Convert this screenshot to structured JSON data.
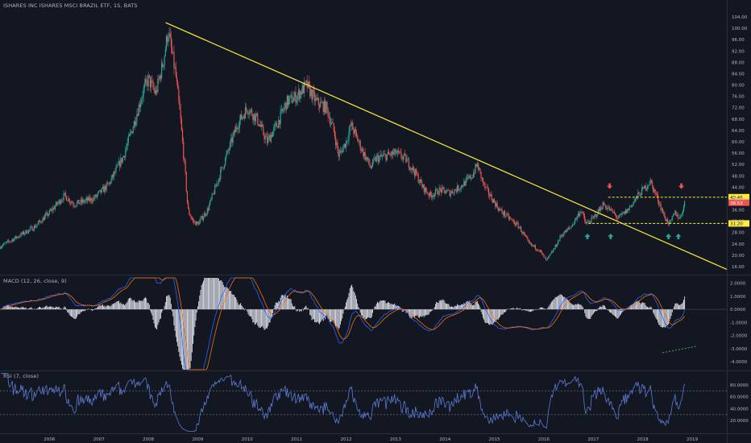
{
  "header": {
    "symbol_line": "ISHARES INC ISHARES MSCI BRAZIL ETF, 1S, BATS"
  },
  "macd_label": "MACD (12, 26, close, 9)",
  "rsi_label": "RSI (7, close)",
  "colors": {
    "background": "#131722",
    "up": "#26a69a",
    "down": "#ef5350",
    "trendline": "#ffeb3b",
    "level": "#ffeb3b",
    "macd": "#2962ff",
    "signal": "#ff6d00",
    "rsi": "#5b7bd5",
    "arrow_up": "#26a69a",
    "arrow_down": "#ef5350",
    "current_price": "#ef5350"
  },
  "chart_data": [
    {
      "type": "candlestick",
      "title": "ISHARES INC ISHARES MSCI BRAZIL ETF, 1S, BATS",
      "ylim": [
        14,
        106
      ],
      "y_ticks": [
        "104.00",
        "100.00",
        "96.00",
        "92.00",
        "88.00",
        "84.00",
        "80.00",
        "76.00",
        "72.00",
        "68.00",
        "64.00",
        "60.00",
        "56.00",
        "52.00",
        "48.00",
        "44.00",
        "40.00",
        "36.00",
        "32.00",
        "28.00",
        "24.00",
        "20.00",
        "16.00"
      ],
      "x_ticks": [
        "2006",
        "2007",
        "2008",
        "2009",
        "2010",
        "2011",
        "2012",
        "2013",
        "2014",
        "2015",
        "2016",
        "2017",
        "2018",
        "2019"
      ],
      "price_path": [
        [
          2005.0,
          23
        ],
        [
          2005.3,
          26
        ],
        [
          2005.7,
          30
        ],
        [
          2006.0,
          35
        ],
        [
          2006.3,
          41
        ],
        [
          2006.5,
          38
        ],
        [
          2006.9,
          40
        ],
        [
          2007.2,
          45
        ],
        [
          2007.5,
          55
        ],
        [
          2007.7,
          66
        ],
        [
          2007.9,
          78
        ],
        [
          2008.0,
          82
        ],
        [
          2008.15,
          77
        ],
        [
          2008.3,
          88
        ],
        [
          2008.4,
          99
        ],
        [
          2008.55,
          84
        ],
        [
          2008.65,
          68
        ],
        [
          2008.75,
          48
        ],
        [
          2008.8,
          36
        ],
        [
          2008.9,
          32
        ],
        [
          2009.0,
          31
        ],
        [
          2009.2,
          36
        ],
        [
          2009.4,
          46
        ],
        [
          2009.6,
          56
        ],
        [
          2009.8,
          66
        ],
        [
          2010.0,
          72
        ],
        [
          2010.2,
          68
        ],
        [
          2010.4,
          60
        ],
        [
          2010.6,
          66
        ],
        [
          2010.8,
          74
        ],
        [
          2011.0,
          76
        ],
        [
          2011.2,
          80
        ],
        [
          2011.4,
          74
        ],
        [
          2011.6,
          72
        ],
        [
          2011.75,
          64
        ],
        [
          2011.85,
          55
        ],
        [
          2012.0,
          60
        ],
        [
          2012.1,
          66
        ],
        [
          2012.2,
          62
        ],
        [
          2012.35,
          56
        ],
        [
          2012.5,
          51
        ],
        [
          2012.6,
          54
        ],
        [
          2012.8,
          55
        ],
        [
          2013.0,
          56
        ],
        [
          2013.2,
          54
        ],
        [
          2013.4,
          49
        ],
        [
          2013.55,
          44
        ],
        [
          2013.7,
          41
        ],
        [
          2013.9,
          43
        ],
        [
          2014.1,
          42
        ],
        [
          2014.3,
          44
        ],
        [
          2014.55,
          48
        ],
        [
          2014.65,
          52
        ],
        [
          2014.8,
          44
        ],
        [
          2014.95,
          40
        ],
        [
          2015.1,
          36
        ],
        [
          2015.3,
          33
        ],
        [
          2015.5,
          30
        ],
        [
          2015.7,
          24
        ],
        [
          2015.9,
          22
        ],
        [
          2016.05,
          18
        ],
        [
          2016.2,
          22
        ],
        [
          2016.35,
          27
        ],
        [
          2016.55,
          30
        ],
        [
          2016.75,
          36
        ],
        [
          2016.85,
          31
        ],
        [
          2017.0,
          33
        ],
        [
          2017.2,
          38
        ],
        [
          2017.4,
          35
        ],
        [
          2017.5,
          33
        ],
        [
          2017.7,
          36
        ],
        [
          2017.9,
          41
        ],
        [
          2018.05,
          44
        ],
        [
          2018.15,
          46
        ],
        [
          2018.3,
          40
        ],
        [
          2018.45,
          33
        ],
        [
          2018.55,
          31
        ],
        [
          2018.65,
          35
        ],
        [
          2018.75,
          33
        ],
        [
          2018.85,
          38.5
        ]
      ],
      "trendline": {
        "from": [
          2008.35,
          102
        ],
        "to": [
          2019.7,
          15
        ]
      },
      "resistance": {
        "value": 40.46,
        "label": "40.46",
        "from": 2017.3
      },
      "support": {
        "value": 31.2,
        "label": "31.20",
        "from": 2016.9
      },
      "current_price": {
        "value": 38.53,
        "label": "38.53"
      },
      "up_arrows_x": [
        2016.88,
        2017.35,
        2018.52,
        2018.72
      ],
      "down_arrows_x": [
        2017.33,
        2018.78
      ]
    },
    {
      "type": "macd",
      "title": "MACD (12, 26, close, 9)",
      "ylim": [
        -4.6,
        2.4
      ],
      "y_ticks": [
        "2.0000",
        "1.0000",
        "0.0000",
        "-1.0000",
        "-2.0000",
        "-3.0000",
        "-4.0000"
      ],
      "divergence_line": {
        "from": [
          2018.4,
          -3.3
        ],
        "to": [
          2019.1,
          -2.8
        ]
      }
    },
    {
      "type": "line",
      "title": "RSI (7, close)",
      "ylim": [
        0,
        100
      ],
      "y_ticks": [
        "80.0000",
        "60.0000",
        "40.0000",
        "20.0000"
      ],
      "bands": [
        70,
        30
      ]
    }
  ]
}
